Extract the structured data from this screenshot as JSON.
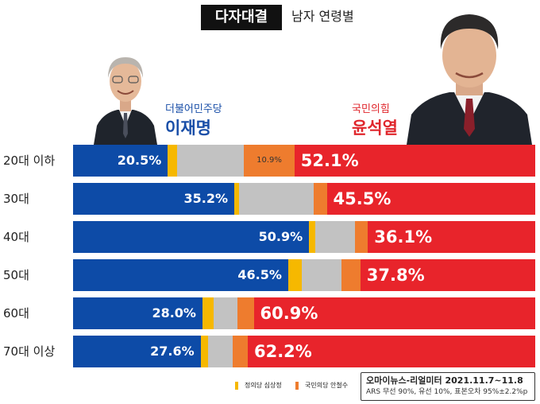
{
  "header": {
    "title": "다자대결",
    "subtitle": "남자 연령별"
  },
  "candidates": {
    "lee": {
      "party": "더불어민주당",
      "name": "이재명",
      "color": "#1a4fa8"
    },
    "yoon": {
      "party": "국민의힘",
      "name": "윤석열",
      "color": "#e0262c"
    }
  },
  "colors": {
    "lee": "#0d4ba7",
    "sim": "#f6b800",
    "undecided": "#c2c2c2",
    "ahn": "#ee7c2e",
    "yoon": "#e8242b"
  },
  "chart_data": {
    "type": "bar",
    "orientation": "horizontal",
    "stacked": true,
    "categories": [
      "20대 이하",
      "30대",
      "40대",
      "50대",
      "60대",
      "70대 이상"
    ],
    "series": [
      {
        "name": "이재명",
        "values": [
          20.5,
          35.2,
          50.9,
          46.5,
          28.0,
          27.6
        ],
        "labels": [
          "20.5%",
          "35.2%",
          "50.9%",
          "46.5%",
          "28.0%",
          "27.6%"
        ]
      },
      {
        "name": "정의당 심상정",
        "values": [
          2.0,
          1.0,
          1.3,
          3.0,
          2.4,
          1.6
        ]
      },
      {
        "values": [
          14.5,
          16.3,
          8.6,
          8.5,
          5.2,
          5.4
        ]
      },
      {
        "name": "국민의당 안철수",
        "values": [
          10.9,
          2.9,
          2.8,
          4.1,
          3.5,
          3.2
        ],
        "labels": [
          "10.9%",
          "",
          "",
          "",
          "",
          ""
        ]
      },
      {
        "name": "윤석열",
        "values": [
          52.1,
          45.5,
          36.1,
          37.8,
          60.9,
          62.2
        ],
        "labels": [
          "52.1%",
          "45.5%",
          "36.1%",
          "37.8%",
          "60.9%",
          "62.2%"
        ]
      }
    ],
    "legend": [
      "정의당 심상정",
      "국민의당 안철수"
    ]
  },
  "source": {
    "main": "오마이뉴스-리얼미터 2021.11.7~11.8",
    "sub": "ARS 무선 90%, 유선 10%, 표본오차 95%±2.2%p"
  }
}
